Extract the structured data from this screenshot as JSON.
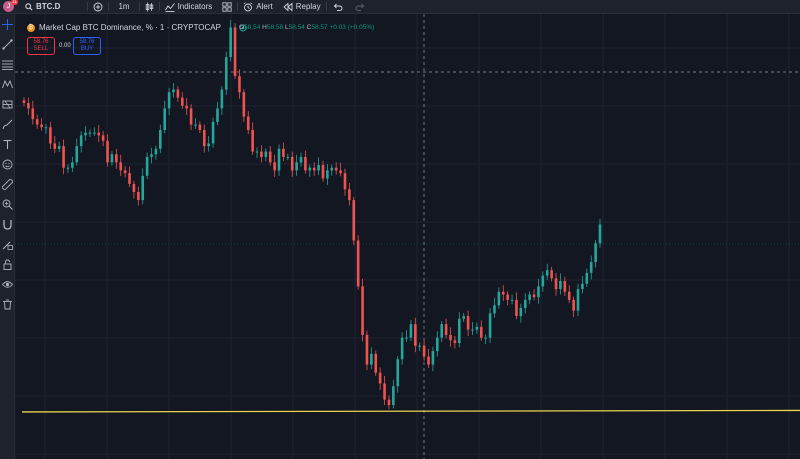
{
  "toolbar": {
    "avatar_letter": "J",
    "avatar_badge": "11",
    "search_icon": "search-icon",
    "symbol": "BTC.D",
    "add_symbol_icon": "plus-circle-icon",
    "interval": "1m",
    "chart_type_icon": "candles-icon",
    "indicators_label": "Indicators",
    "layout_icon": "grid-icon",
    "alert_label": "Alert",
    "replay_label": "Replay",
    "undo_icon": "undo-icon",
    "redo_icon": "redo-icon"
  },
  "sidebar": {
    "tools": [
      "crosshair-icon",
      "trend-line-icon",
      "fib-retracement-icon",
      "pattern-icon",
      "forecast-icon",
      "brush-icon",
      "text-icon",
      "emoji-icon",
      "ruler-icon",
      "zoom-icon",
      "magnet-icon",
      "lock-drawing-icon",
      "lock-icon",
      "eye-icon",
      "trash-icon"
    ]
  },
  "legend": {
    "title": "Market Cap BTC Dominance, % · 1 · CRYPTOCAP",
    "open_label": "O",
    "open": "58.54",
    "high_label": "H",
    "high": "58.58",
    "low_label": "L",
    "low": "58.54",
    "close_label": "C",
    "close": "58.57",
    "change": "+0.03 (+0.05%)"
  },
  "trade": {
    "sell_price": "58.76",
    "sell_label": "SELL",
    "spread": "0.00",
    "buy_price": "58.76",
    "buy_label": "BUY"
  },
  "colors": {
    "up": "#26a69a",
    "down": "#ef5350",
    "support_line": "#e8d44d",
    "background": "#131722"
  },
  "chart_data": {
    "type": "candlestick",
    "ylim": [
      57.5,
      59.15
    ],
    "support_level": 57.68,
    "crosshair_price": 58.91,
    "closes": [
      58.82,
      58.8,
      58.76,
      58.74,
      58.73,
      58.73,
      58.67,
      58.65,
      58.66,
      58.58,
      58.58,
      58.6,
      58.66,
      58.7,
      58.71,
      58.71,
      58.71,
      58.7,
      58.68,
      58.6,
      58.63,
      58.6,
      58.57,
      58.56,
      58.52,
      58.49,
      58.46,
      58.55,
      58.62,
      58.63,
      58.65,
      58.72,
      58.8,
      58.86,
      58.87,
      58.84,
      58.81,
      58.8,
      58.74,
      58.74,
      58.72,
      58.66,
      58.67,
      58.75,
      58.8,
      58.87,
      58.99,
      59.1,
      58.92,
      58.86,
      58.77,
      58.72,
      58.64,
      58.64,
      58.62,
      58.64,
      58.6,
      58.57,
      58.65,
      58.62,
      58.62,
      58.57,
      58.6,
      58.62,
      58.57,
      58.58,
      58.57,
      58.59,
      58.54,
      58.57,
      58.58,
      58.57,
      58.56,
      58.5,
      58.46,
      58.31,
      58.14,
      57.96,
      57.85,
      57.89,
      57.82,
      57.78,
      57.72,
      57.7,
      57.77,
      57.87,
      57.95,
      57.95,
      58.0,
      57.92,
      57.92,
      57.88,
      57.85,
      57.9,
      57.95,
      58.0,
      57.96,
      57.94,
      57.93,
      58.02,
      58.03,
      57.98,
      57.98,
      57.99,
      57.95,
      57.95,
      58.04,
      58.07,
      58.12,
      58.11,
      58.09,
      58.09,
      58.03,
      58.06,
      58.09,
      58.11,
      58.1,
      58.14,
      58.18,
      58.2,
      58.17,
      58.13,
      58.16,
      58.12,
      58.09,
      58.05,
      58.13,
      58.15,
      58.19,
      58.23,
      58.3,
      58.37
    ]
  }
}
